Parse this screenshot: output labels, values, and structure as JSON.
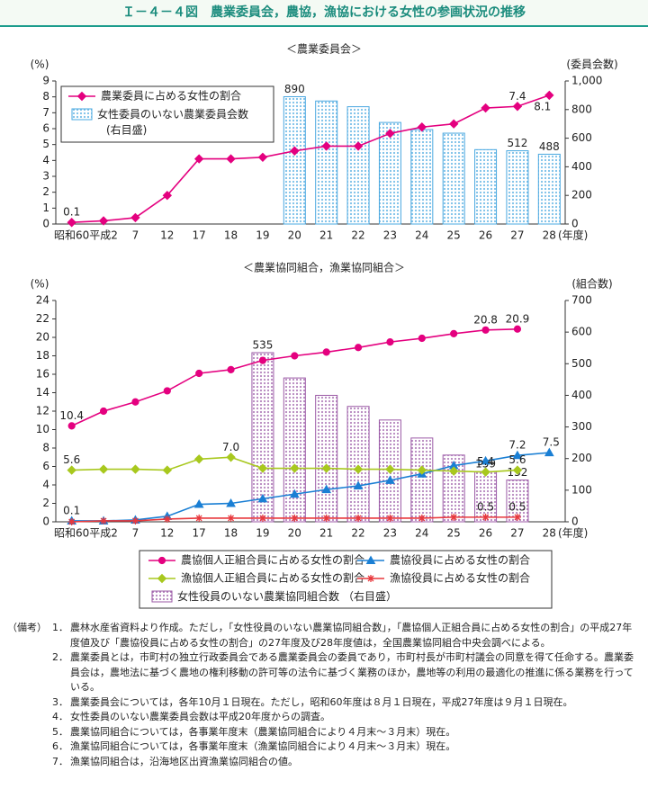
{
  "header": {
    "title": "Ｉ－４－４図　農業委員会，農協，漁協における女性の参画状況の推移"
  },
  "chart_data": [
    {
      "type": "combo",
      "subtitle": "＜農業委員会＞",
      "categories": [
        "昭和60",
        "平成2",
        "7",
        "12",
        "17",
        "18",
        "19",
        "20",
        "21",
        "22",
        "23",
        "24",
        "25",
        "26",
        "27",
        "28"
      ],
      "x_label": "(年度)",
      "y_label": "(%)",
      "y2_label": "(委員会数)",
      "ylim": [
        0,
        9
      ],
      "yticks": [
        0,
        1,
        2,
        3,
        4,
        5,
        6,
        7,
        8,
        9
      ],
      "y2lim": [
        0,
        1000
      ],
      "y2ticks": [
        0,
        200,
        400,
        600,
        800,
        {
          "value": 1000,
          "label": "1,000"
        }
      ],
      "legend": "upper left",
      "series": [
        {
          "name": "女性委員のいない農業委員会数",
          "axis_note": "(右目盛)",
          "type": "bar",
          "axis": "y2",
          "color": "#4aa8e0",
          "values": [
            null,
            null,
            null,
            null,
            null,
            null,
            null,
            890,
            860,
            820,
            710,
            660,
            635,
            520,
            512,
            488
          ],
          "value_labels": [
            null,
            null,
            null,
            null,
            null,
            null,
            null,
            "890",
            null,
            null,
            null,
            null,
            null,
            null,
            "512",
            "488"
          ]
        },
        {
          "name": "農業委員に占める女性の割合",
          "type": "line",
          "marker": "diamond",
          "color": "#e4007f",
          "values": [
            0.1,
            0.2,
            0.4,
            1.8,
            4.1,
            4.1,
            4.2,
            4.6,
            4.9,
            4.9,
            5.7,
            6.1,
            6.3,
            7.3,
            7.4,
            8.1
          ],
          "value_labels": [
            "0.1",
            null,
            null,
            null,
            null,
            null,
            null,
            null,
            null,
            null,
            null,
            null,
            null,
            null,
            "7.4",
            "8.1"
          ]
        }
      ]
    },
    {
      "type": "combo",
      "subtitle": "＜農業協同組合，漁業協同組合＞",
      "categories": [
        "昭和60",
        "平成2",
        "7",
        "12",
        "17",
        "18",
        "19",
        "20",
        "21",
        "22",
        "23",
        "24",
        "25",
        "26",
        "27",
        "28"
      ],
      "x_label": "(年度)",
      "y_label": "(%)",
      "y2_label": "(組合数)",
      "ylim": [
        0,
        24
      ],
      "yticks": [
        0,
        2,
        4,
        6,
        8,
        10,
        12,
        14,
        16,
        18,
        20,
        22,
        24
      ],
      "y2lim": [
        0,
        700
      ],
      "y2ticks": [
        0,
        100,
        200,
        300,
        400,
        500,
        600,
        700
      ],
      "legend": "bottom",
      "series": [
        {
          "name": "農協個人正組合員に占める女性の割合",
          "type": "line",
          "marker": "circle",
          "color": "#e4007f",
          "values": [
            10.4,
            12.0,
            13.0,
            14.2,
            16.1,
            16.5,
            17.5,
            18.0,
            18.4,
            18.9,
            19.5,
            19.9,
            20.4,
            20.8,
            20.9,
            null
          ],
          "value_labels": [
            "10.4",
            null,
            null,
            null,
            null,
            null,
            null,
            null,
            null,
            null,
            null,
            null,
            null,
            "20.8",
            "20.9",
            null
          ]
        },
        {
          "name": "農協役員に占める女性の割合",
          "type": "line",
          "marker": "triangle",
          "color": "#1a7fd4",
          "values": [
            0.1,
            0.1,
            0.2,
            0.6,
            1.9,
            2.0,
            2.5,
            3.0,
            3.5,
            3.9,
            4.5,
            5.2,
            6.1,
            6.6,
            7.2,
            7.5
          ],
          "value_labels": [
            "0.1",
            null,
            null,
            null,
            null,
            null,
            null,
            null,
            null,
            null,
            null,
            null,
            null,
            null,
            "7.2",
            "7.5"
          ]
        },
        {
          "name": "漁協個人正組合員に占める女性の割合",
          "type": "line",
          "marker": "diamond",
          "color": "#a8c81e",
          "values": [
            5.6,
            5.7,
            5.7,
            5.6,
            6.8,
            7.0,
            5.8,
            5.8,
            5.8,
            5.7,
            5.7,
            5.6,
            5.5,
            5.4,
            5.6,
            null
          ],
          "value_labels": [
            "5.6",
            null,
            null,
            null,
            null,
            "7.0",
            null,
            null,
            null,
            null,
            null,
            null,
            null,
            "5.4",
            "5.6",
            null
          ]
        },
        {
          "name": "漁協役員に占める女性の割合",
          "type": "line",
          "marker": "asterisk",
          "color": "#e8383d",
          "values": [
            0.0,
            0.1,
            0.1,
            0.3,
            0.4,
            0.4,
            0.4,
            0.4,
            0.4,
            0.4,
            0.4,
            0.4,
            0.5,
            0.5,
            0.5,
            null
          ],
          "value_labels": [
            null,
            null,
            null,
            null,
            null,
            null,
            null,
            null,
            null,
            null,
            null,
            null,
            null,
            "0.5",
            "0.5",
            null
          ]
        },
        {
          "name": "女性役員のいない農業協同組合数",
          "axis_note": "（右目盛）",
          "type": "bar",
          "axis": "y2",
          "color": "#9b5aa6",
          "values": [
            null,
            null,
            null,
            null,
            null,
            null,
            535,
            455,
            400,
            365,
            322,
            265,
            211,
            159,
            132,
            null
          ],
          "value_labels": [
            null,
            null,
            null,
            null,
            null,
            null,
            "535",
            null,
            null,
            null,
            null,
            null,
            null,
            "159",
            "132",
            null
          ]
        }
      ]
    }
  ],
  "notes": {
    "label": "（備考）",
    "items": [
      {
        "num": "1．",
        "text": "農林水産省資料より作成。ただし，「女性役員のいない農業協同組合数」，「農協個人正組合員に占める女性の割合」の平成27年度値及び「農協役員に占める女性の割合」の27年度及び28年度値は，全国農業協同組合中央会調べによる。"
      },
      {
        "num": "2．",
        "text": "農業委員とは，市町村の独立行政委員会である農業委員会の委員であり，市町村長が市町村議会の同意を得て任命する。農業委員会は，農地法に基づく農地の権利移動の許可等の法令に基づく業務のほか，農地等の利用の最適化の推進に係る業務を行っている。"
      },
      {
        "num": "3．",
        "text": "農業委員会については，各年10月１日現在。ただし，昭和60年度は８月１日現在，平成27年度は９月１日現在。"
      },
      {
        "num": "4．",
        "text": "女性委員のいない農業委員会数は平成20年度からの調査。"
      },
      {
        "num": "5．",
        "text": "農業協同組合については，各事業年度末（農業協同組合により４月末～３月末）現在。"
      },
      {
        "num": "6．",
        "text": "漁業協同組合については，各事業年度末（漁業協同組合により４月末～３月末）現在。"
      },
      {
        "num": "7．",
        "text": "漁業協同組合は，沿海地区出資漁業協同組合の値。"
      }
    ]
  }
}
